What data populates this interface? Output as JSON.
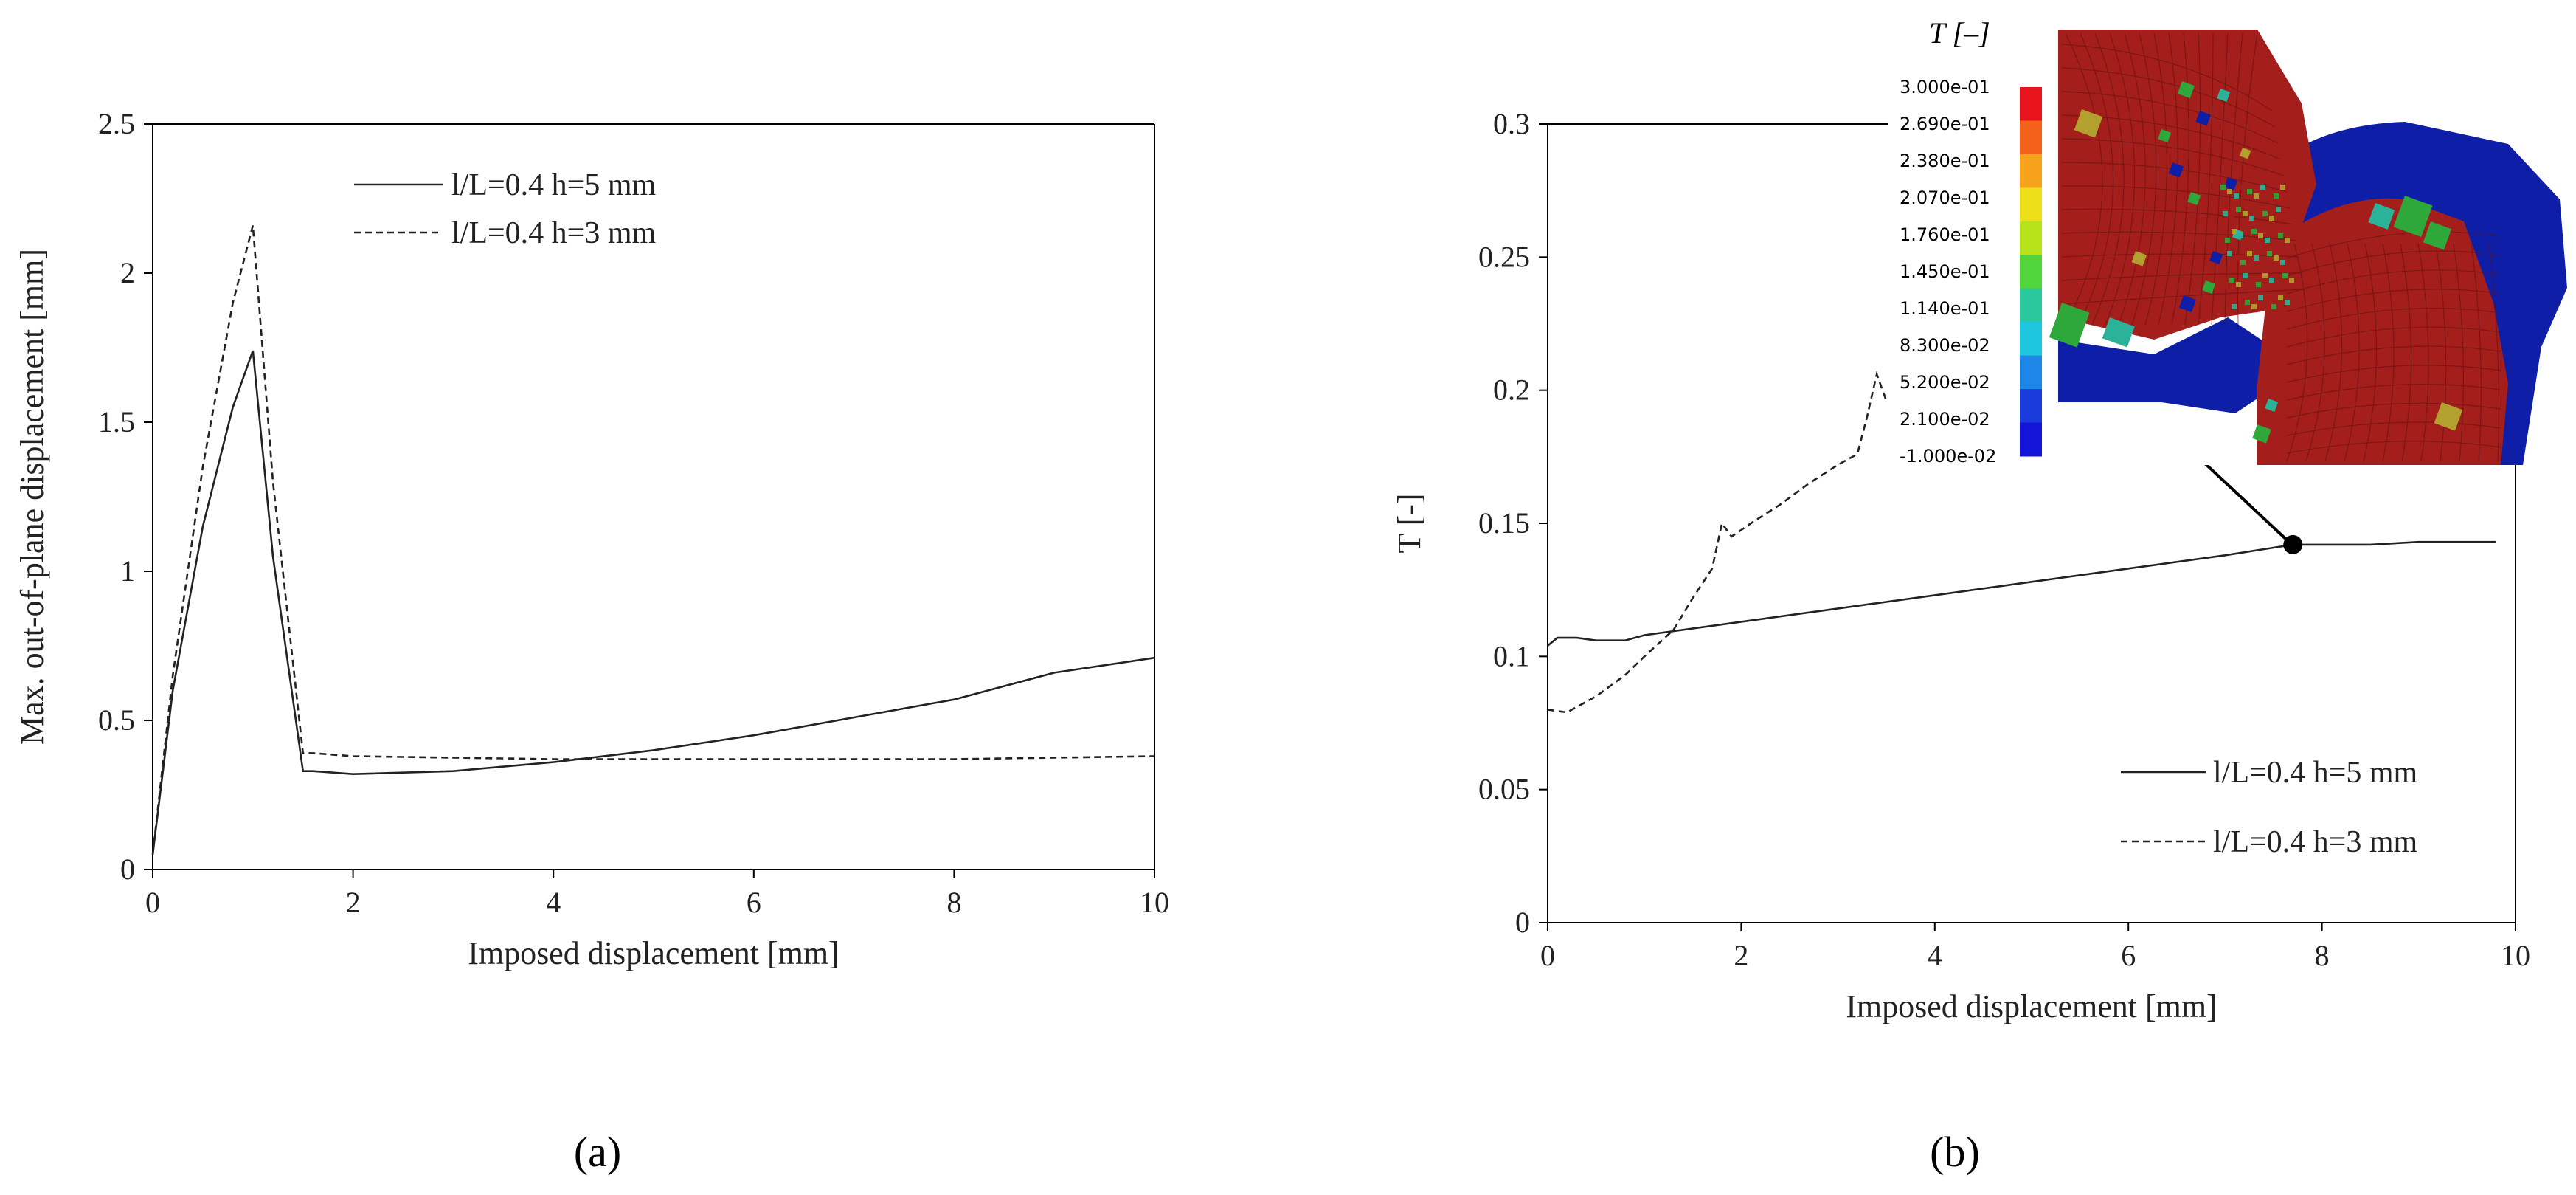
{
  "chart_data": [
    {
      "type": "line",
      "panel_label": "(a)",
      "xlabel": "Imposed displacement [mm]",
      "ylabel": "Max. out-of-plane displacement [mm]",
      "xlim": [
        0,
        10
      ],
      "ylim": [
        0,
        2.5
      ],
      "xticks": [
        "0",
        "2",
        "4",
        "6",
        "8",
        "10"
      ],
      "yticks": [
        "0",
        "0.5",
        "1",
        "1.5",
        "2",
        "2.5"
      ],
      "grid": false,
      "legend_placement": "top-center",
      "series": [
        {
          "name": "l/L=0.4 h=5 mm",
          "style": "solid",
          "x": [
            0,
            0.2,
            0.5,
            0.8,
            1.0,
            1.2,
            1.5,
            1.6,
            2,
            3,
            4,
            5,
            6,
            7,
            8,
            9,
            10
          ],
          "y": [
            0.05,
            0.6,
            1.15,
            1.55,
            1.74,
            1.05,
            0.33,
            0.33,
            0.32,
            0.33,
            0.36,
            0.4,
            0.45,
            0.51,
            0.57,
            0.66,
            0.71
          ]
        },
        {
          "name": "l/L=0.4 h=3 mm",
          "style": "dashed",
          "x": [
            0,
            0.2,
            0.5,
            0.8,
            1.0,
            1.2,
            1.5,
            1.6,
            2,
            4,
            6,
            8,
            10
          ],
          "y": [
            0.05,
            0.65,
            1.35,
            1.9,
            2.16,
            1.3,
            0.39,
            0.39,
            0.38,
            0.37,
            0.37,
            0.37,
            0.38
          ]
        }
      ]
    },
    {
      "type": "line",
      "panel_label": "(b)",
      "xlabel": "Imposed displacement [mm]",
      "ylabel": "T [-]",
      "xlim": [
        0,
        10
      ],
      "ylim": [
        0,
        0.3
      ],
      "xticks": [
        "0",
        "2",
        "4",
        "6",
        "8",
        "10"
      ],
      "yticks": [
        "0",
        "0.05",
        "0.1",
        "0.15",
        "0.2",
        "0.25",
        "0.3"
      ],
      "grid": false,
      "legend_placement": "bottom-right",
      "series": [
        {
          "name": "l/L=0.4 h=5 mm",
          "style": "solid",
          "x": [
            0,
            0.1,
            0.3,
            0.5,
            0.8,
            1.0,
            2,
            3,
            4,
            5,
            6,
            7,
            7.7,
            8,
            8.5,
            9,
            9.5,
            9.8
          ],
          "y": [
            0.104,
            0.107,
            0.107,
            0.106,
            0.106,
            0.108,
            0.113,
            0.118,
            0.123,
            0.128,
            0.133,
            0.138,
            0.142,
            0.142,
            0.142,
            0.143,
            0.143,
            0.143
          ]
        },
        {
          "name": "l/L=0.4 h=3 mm",
          "style": "dashed",
          "x": [
            0,
            0.2,
            0.5,
            0.8,
            1.0,
            1.3,
            1.5,
            1.7,
            1.8,
            1.9,
            2.1,
            2.4,
            2.7,
            3.0,
            3.2,
            3.3,
            3.4,
            3.5
          ],
          "y": [
            0.08,
            0.079,
            0.085,
            0.093,
            0.1,
            0.11,
            0.122,
            0.133,
            0.15,
            0.145,
            0.15,
            0.157,
            0.165,
            0.172,
            0.176,
            0.19,
            0.206,
            0.196
          ]
        }
      ],
      "marker_point": {
        "x": 7.7,
        "y": 0.142
      },
      "inset": {
        "title": "T [–]",
        "colorbar_labels": [
          "3.000e-01",
          "2.690e-01",
          "2.380e-01",
          "2.070e-01",
          "1.760e-01",
          "1.450e-01",
          "1.140e-01",
          "8.300e-02",
          "5.200e-02",
          "2.100e-02",
          "-1.000e-02"
        ],
        "colorbar_colors": [
          "#e8141b",
          "#f2601a",
          "#f7a21b",
          "#eedf1b",
          "#b7e21c",
          "#51d43c",
          "#2cc79c",
          "#1fc6e0",
          "#1e86e6",
          "#1a3cdc",
          "#1414d8"
        ],
        "mesh_colors": {
          "high": "#a41e1c",
          "low": "#0e1ea6",
          "mid_green": "#2ea83a",
          "mid_yellow": "#b2a12e",
          "mid_cyan": "#2bb39a"
        }
      }
    }
  ]
}
